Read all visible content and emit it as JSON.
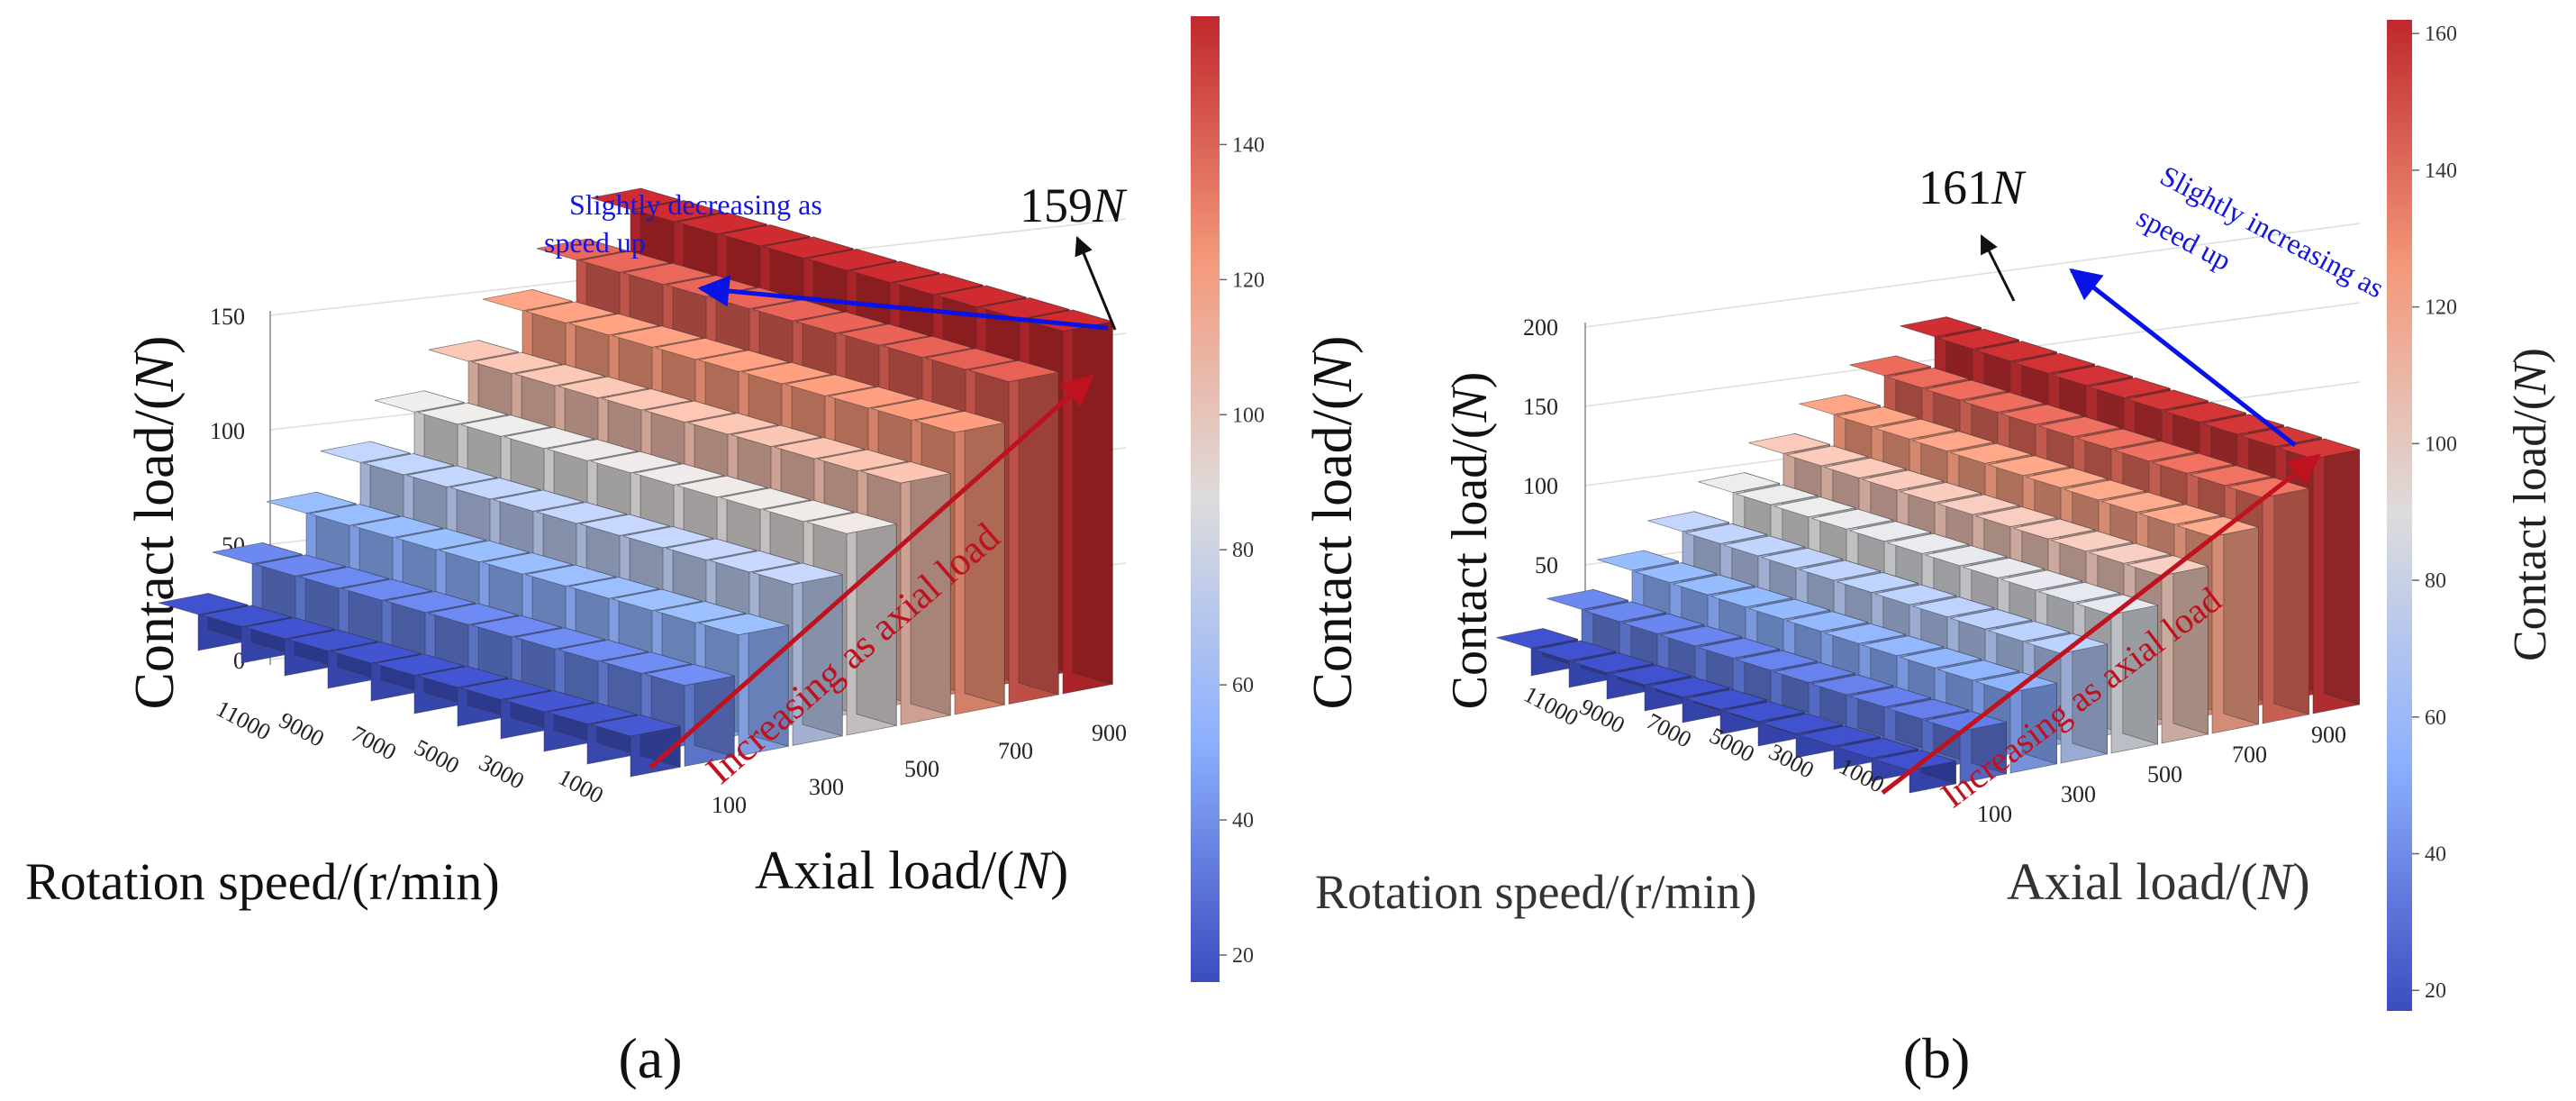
{
  "figure": {
    "colors": {
      "low": "#3b4cc0",
      "mid": "#dddcdc",
      "high": "#c0282d",
      "arrow_red": "#c0111f",
      "arrow_blue": "#0a13e6",
      "text_blue": "#1515e0",
      "text_red": "#c0111f"
    }
  },
  "chart_data": [
    {
      "panel": "a",
      "type": "bar3d",
      "caption": "(a)",
      "zlabel_main": "Contact load/(",
      "zlabel_italic": "N",
      "zlabel_close": ")",
      "xlabel_main": "Axial load/(",
      "xlabel_italic": "N",
      "xlabel_close": ")",
      "ylabel": "Rotation speed/(r/min)",
      "colorbar_label": "",
      "axial_load_ticks": [
        "100",
        "300",
        "500",
        "700",
        "900"
      ],
      "rotation_speed_ticks": [
        "11000",
        "9000",
        "7000",
        "5000",
        "3000",
        "1000"
      ],
      "z_ticks": [
        "0",
        "50",
        "100",
        "150"
      ],
      "z_range": [
        0,
        160
      ],
      "colorbar_ticks": [
        "20",
        "40",
        "60",
        "80",
        "100",
        "120",
        "140"
      ],
      "colorbar_range": [
        16,
        159
      ],
      "axial_load_values": [
        100,
        200,
        300,
        400,
        500,
        600,
        700,
        800,
        900
      ],
      "rotation_speed_values": [
        1000,
        2000,
        3000,
        4000,
        5000,
        6000,
        7000,
        8000,
        9000,
        10000,
        11000
      ],
      "contact_load_min": 16,
      "contact_load_max": 159,
      "speed_trend": -2,
      "annotation_value": "159",
      "annotation_unit": "N",
      "blue_note_line1": "Slightly decreasing as",
      "blue_note_line2": "speed up",
      "red_note": "Increasing as axial load"
    },
    {
      "panel": "b",
      "type": "bar3d",
      "caption": "(b)",
      "zlabel_main": "Contact load/(",
      "zlabel_italic": "N",
      "zlabel_close": ")",
      "xlabel_main": "Axial load/(",
      "xlabel_italic": "N",
      "xlabel_close": ")",
      "ylabel": "Rotation speed/(r/min)",
      "colorbar_label": "Contact load/(",
      "axial_load_ticks": [
        "100",
        "300",
        "500",
        "700",
        "900"
      ],
      "rotation_speed_ticks": [
        "11000",
        "9000",
        "7000",
        "5000",
        "3000",
        "1000"
      ],
      "z_ticks": [
        "0",
        "50",
        "100",
        "150",
        "200"
      ],
      "z_range": [
        0,
        210
      ],
      "colorbar_ticks": [
        "20",
        "40",
        "60",
        "80",
        "100",
        "120",
        "140",
        "160"
      ],
      "colorbar_range": [
        17,
        162
      ],
      "axial_load_values": [
        100,
        200,
        300,
        400,
        500,
        600,
        700,
        800,
        900
      ],
      "rotation_speed_values": [
        1000,
        2000,
        3000,
        4000,
        5000,
        6000,
        7000,
        8000,
        9000,
        10000,
        11000
      ],
      "contact_load_min": 17,
      "contact_load_max": 161,
      "speed_trend": 3,
      "annotation_value": "161",
      "annotation_unit": "N",
      "blue_note_line1": "Slightly increasing as",
      "blue_note_line2": "speed up",
      "red_note": "Increasing as axial load"
    }
  ]
}
